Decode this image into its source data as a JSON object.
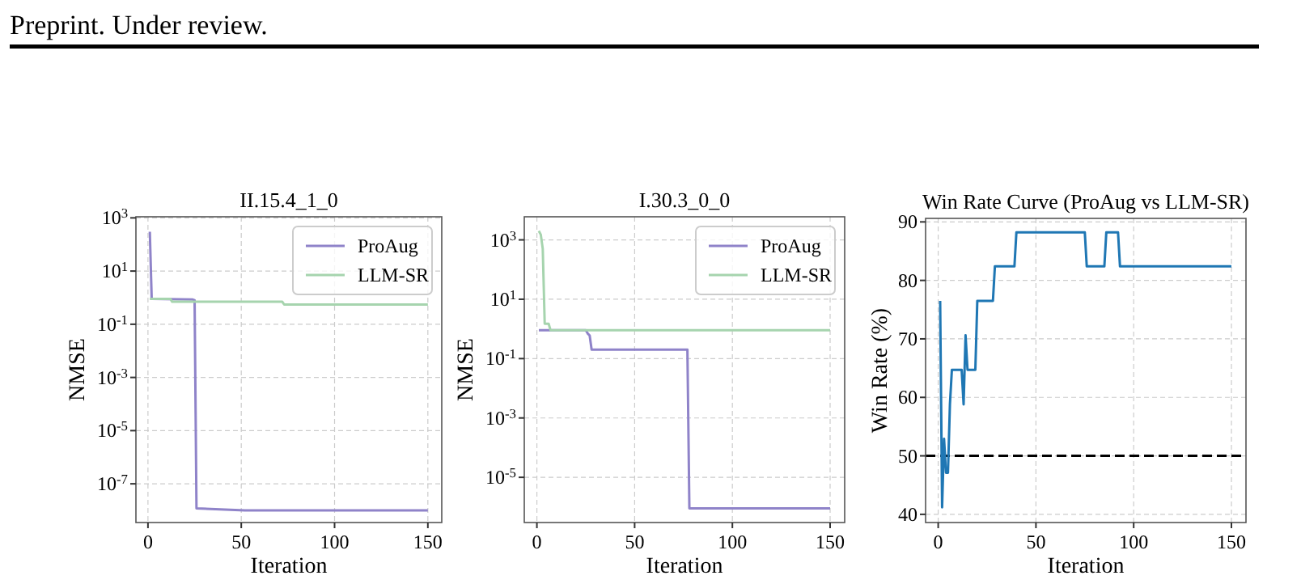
{
  "chart_data": [
    {
      "type": "line",
      "title": "II.15.4_1_0",
      "xlabel": "Iteration",
      "ylabel": "NMSE",
      "log": "y",
      "grid": true,
      "legend": "top right",
      "annotations": [
        "Preprint. Under review."
      ],
      "xlim": [
        -6.45,
        157.45
      ],
      "xticks": [
        0,
        50,
        100,
        150
      ],
      "ylim": [
        3.5e-09,
        1100.0
      ],
      "yticks": [
        {
          "value": 1000,
          "label": "10$^{3}$"
        },
        {
          "value": 10,
          "label": "10$^{1}$"
        },
        {
          "value": 0.1,
          "label": "10$^{-1}$"
        },
        {
          "value": 0.001,
          "label": "10$^{-3}$"
        },
        {
          "value": 1e-05,
          "label": "10$^{-5}$"
        },
        {
          "value": 1e-07,
          "label": "10$^{-7}$"
        }
      ],
      "series": [
        {
          "name": "ProAug",
          "color": "#8f83c9",
          "x": [
            1,
            2,
            24,
            25,
            26,
            52,
            150
          ],
          "values": [
            300,
            0.9,
            0.85,
            0.8,
            1.2e-08,
            1e-08,
            1e-08
          ]
        },
        {
          "name": "LLM-SR",
          "color": "#a6d4ae",
          "x": [
            1,
            12,
            13,
            72,
            73,
            150
          ],
          "values": [
            0.9,
            0.9,
            0.7,
            0.7,
            0.55,
            0.55
          ]
        }
      ]
    },
    {
      "type": "line",
      "title": "I.30.3_0_0",
      "xlabel": "Iteration",
      "ylabel": "NMSE",
      "log": "y",
      "grid": true,
      "legend": "top right",
      "xlim": [
        -6.45,
        157.45
      ],
      "xticks": [
        0,
        50,
        100,
        150
      ],
      "ylim": [
        3e-07,
        6000.0
      ],
      "yticks": [
        {
          "value": 1000,
          "label": "10$^{3}$"
        },
        {
          "value": 10,
          "label": "10$^{1}$"
        },
        {
          "value": 0.1,
          "label": "10$^{-1}$"
        },
        {
          "value": 0.001,
          "label": "10$^{-3}$"
        },
        {
          "value": 1e-05,
          "label": "10$^{-5}$"
        }
      ],
      "series": [
        {
          "name": "ProAug",
          "color": "#8f83c9",
          "x": [
            1,
            25,
            26,
            27,
            28,
            77,
            78,
            150
          ],
          "values": [
            0.9,
            0.9,
            0.7,
            0.6,
            0.2,
            0.2,
            9e-07,
            9e-07
          ]
        },
        {
          "name": "LLM-SR",
          "color": "#a6d4ae",
          "x": [
            1,
            2,
            3,
            4,
            6,
            7,
            150
          ],
          "values": [
            2000,
            1500,
            500,
            1.5,
            1.5,
            0.9,
            0.9
          ]
        }
      ]
    },
    {
      "type": "line",
      "title": "Win Rate Curve (ProAug vs LLM-SR)",
      "xlabel": "Iteration",
      "ylabel": "Win Rate (%)",
      "grid": true,
      "xlim": [
        -6.45,
        157.45
      ],
      "xticks": [
        0,
        50,
        100,
        150
      ],
      "ylim": [
        38.6,
        90.6
      ],
      "yticks": [
        40,
        50,
        60,
        70,
        80,
        90
      ],
      "ref_lines": [
        {
          "axis": "y",
          "value": 50,
          "color": "#000000",
          "line_style": "dashed"
        }
      ],
      "series": [
        {
          "color": "#1f77b4",
          "x": [
            1,
            2,
            3,
            4,
            5,
            6,
            7,
            12,
            13,
            14,
            15,
            19,
            20,
            28,
            29,
            39,
            40,
            75,
            76,
            85,
            86,
            92,
            93,
            150
          ],
          "values": [
            76.5,
            41.2,
            52.9,
            47.1,
            47.1,
            58.8,
            64.7,
            64.7,
            58.8,
            70.6,
            64.7,
            64.7,
            76.5,
            76.5,
            82.4,
            82.4,
            88.2,
            88.2,
            82.4,
            82.4,
            88.2,
            88.2,
            82.4,
            82.4
          ]
        }
      ]
    }
  ]
}
